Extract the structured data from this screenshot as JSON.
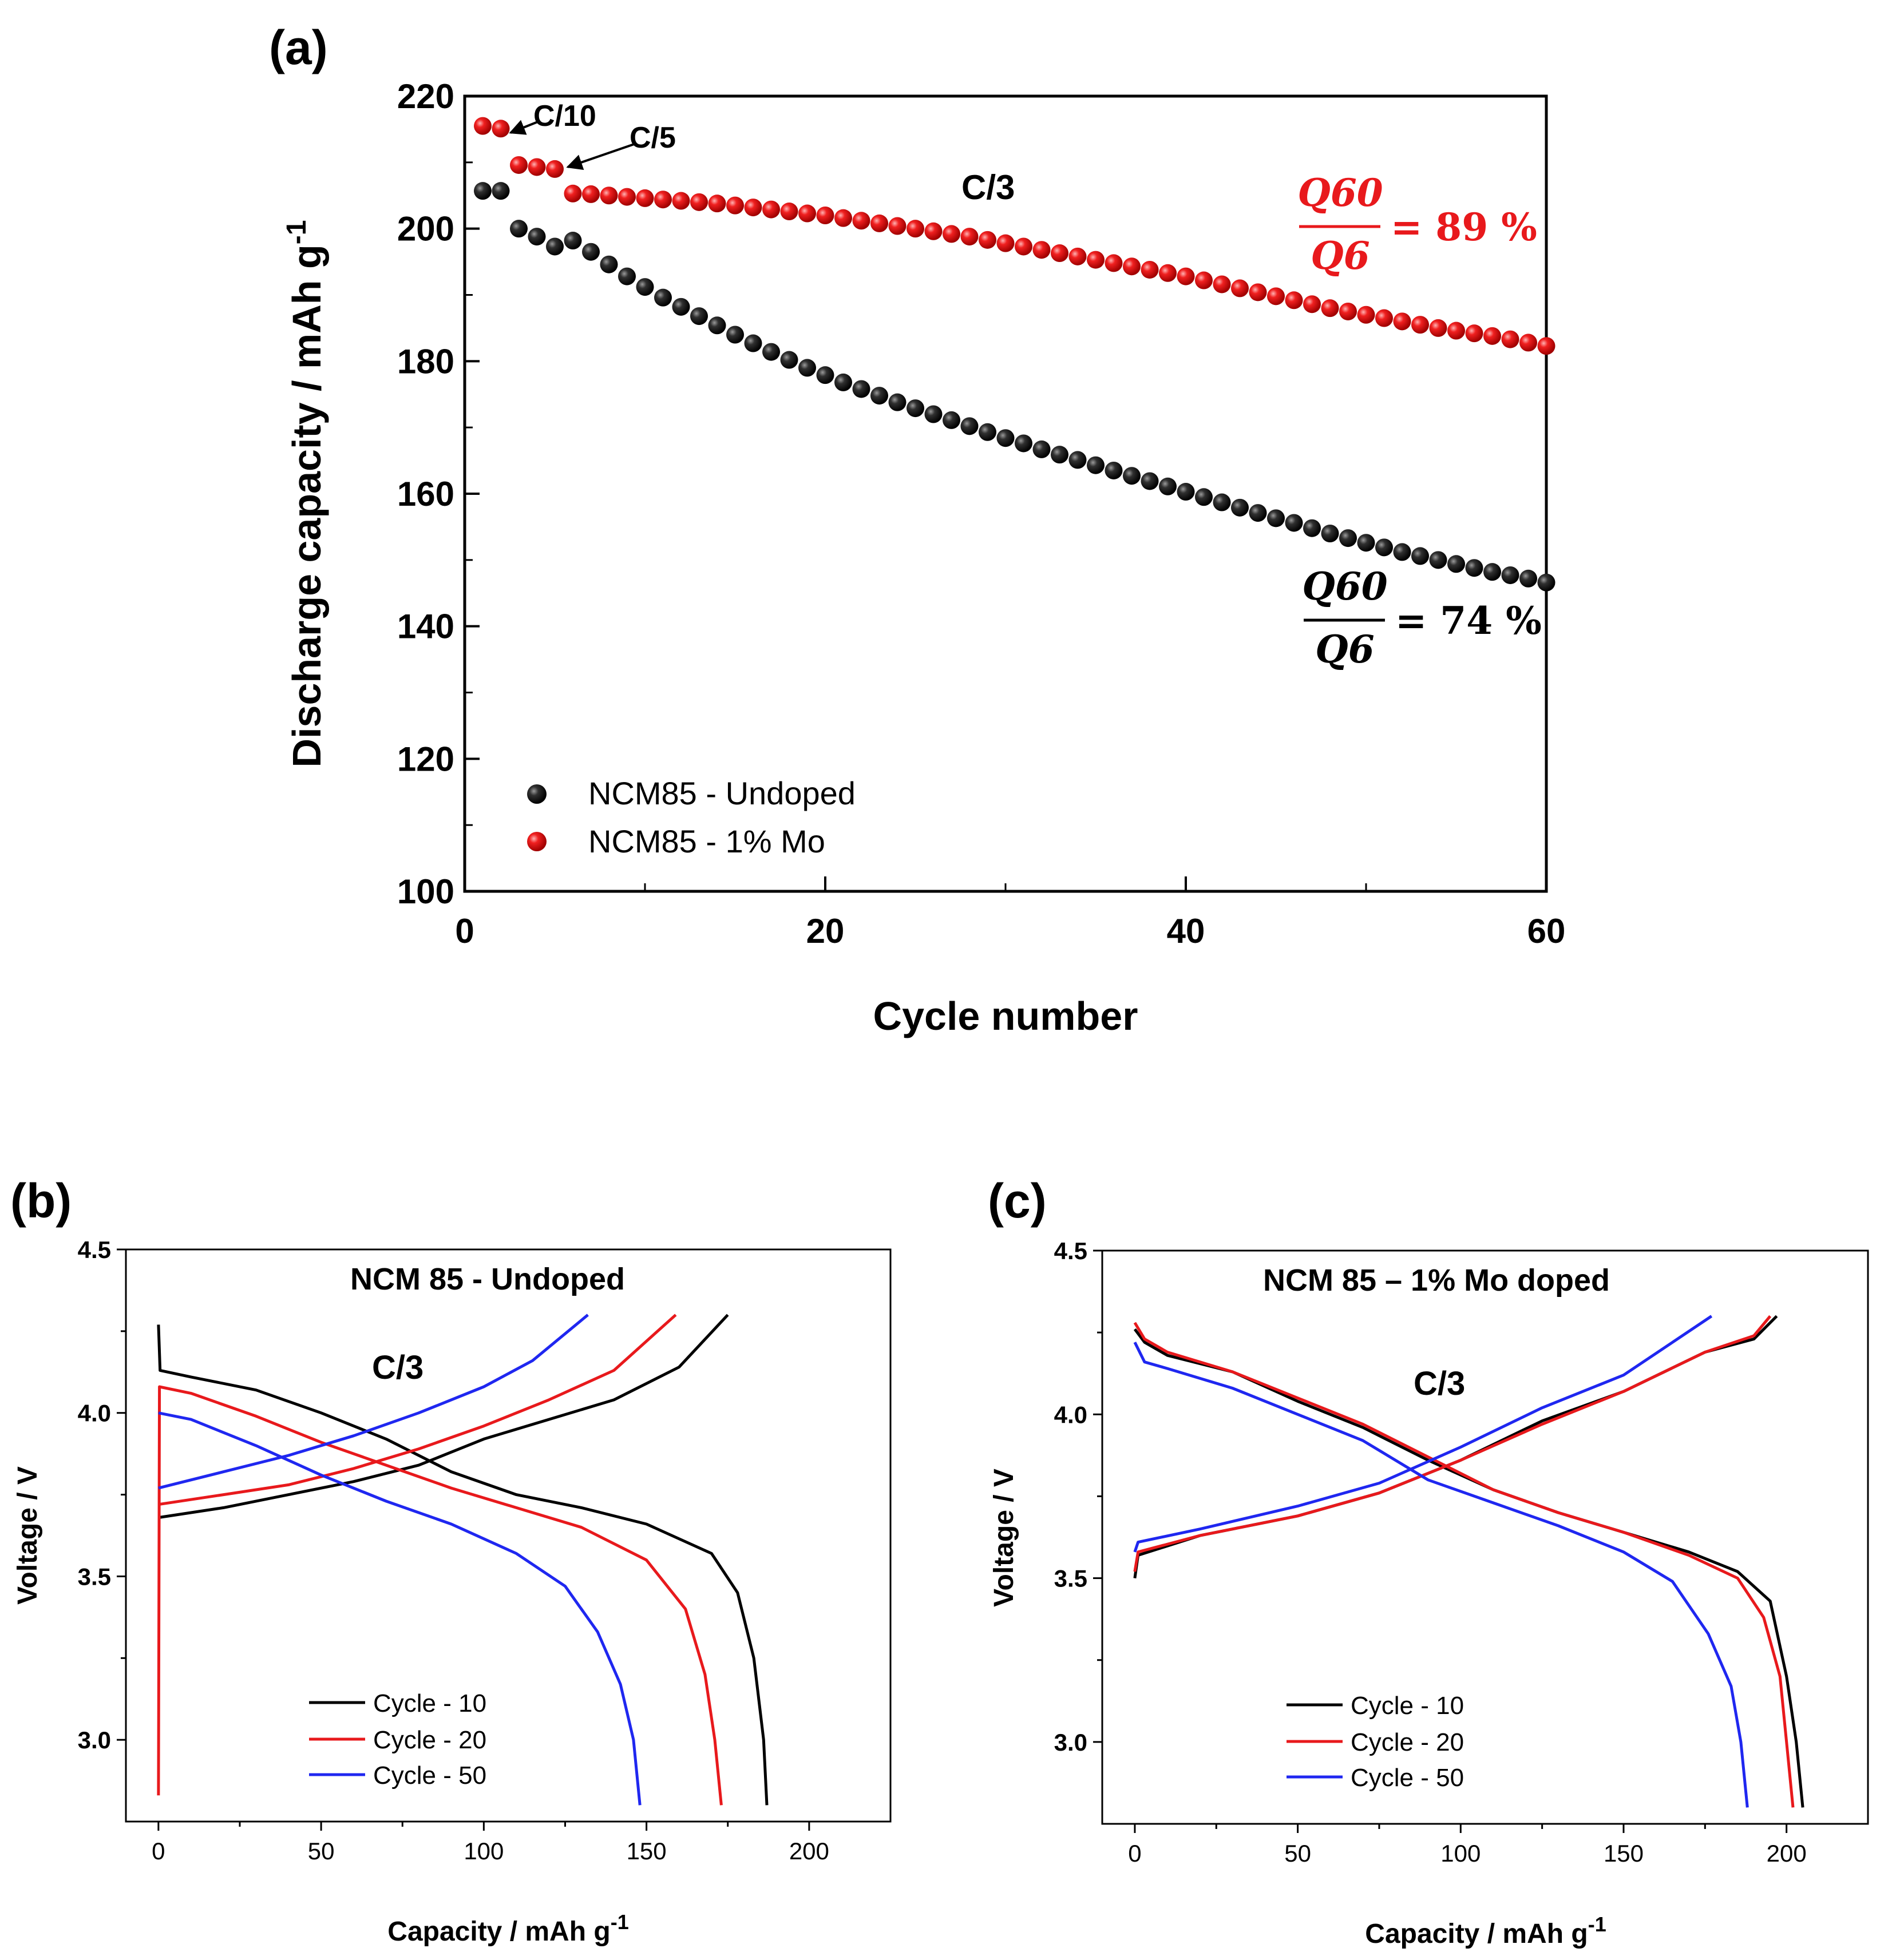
{
  "chart_data": [
    {
      "panel": "(a)",
      "type": "scatter",
      "xlabel": "Cycle number",
      "ylabel": "Discharge capacity / mAh g",
      "ylabel_sup": "-1",
      "xlim": [
        0,
        60
      ],
      "ylim": [
        100,
        220
      ],
      "xticks": [
        0,
        20,
        40,
        60
      ],
      "yticks": [
        100,
        120,
        140,
        160,
        180,
        200,
        220
      ],
      "legend_position": "bottom-left",
      "series": [
        {
          "name": "NCM85 - Undoped",
          "color": "#000000",
          "x": [
            1,
            2,
            3,
            4,
            5,
            6,
            7,
            8,
            9,
            10,
            11,
            12,
            13,
            14,
            15,
            16,
            17,
            18,
            19,
            20,
            21,
            22,
            23,
            24,
            25,
            26,
            27,
            28,
            29,
            30,
            31,
            32,
            33,
            34,
            35,
            36,
            37,
            38,
            39,
            40,
            41,
            42,
            43,
            44,
            45,
            46,
            47,
            48,
            49,
            50,
            51,
            52,
            53,
            54,
            55,
            56,
            57,
            58,
            59,
            60
          ],
          "values": [
            205.7,
            205.7,
            200.0,
            198.8,
            197.3,
            198.2,
            196.5,
            194.6,
            192.8,
            191.2,
            189.6,
            188.2,
            186.8,
            185.4,
            184.0,
            182.7,
            181.4,
            180.2,
            179.0,
            177.9,
            176.8,
            175.8,
            174.8,
            173.8,
            172.9,
            172.0,
            171.1,
            170.2,
            169.3,
            168.4,
            167.6,
            166.7,
            165.9,
            165.1,
            164.3,
            163.5,
            162.7,
            161.9,
            161.1,
            160.3,
            159.5,
            158.7,
            157.9,
            157.1,
            156.3,
            155.6,
            154.8,
            154.0,
            153.3,
            152.6,
            151.9,
            151.2,
            150.6,
            150.0,
            149.4,
            148.8,
            148.2,
            147.7,
            147.2,
            146.6
          ]
        },
        {
          "name": "NCM85 - 1% Mo",
          "color": "#e8191c",
          "x": [
            1,
            2,
            3,
            4,
            5,
            6,
            7,
            8,
            9,
            10,
            11,
            12,
            13,
            14,
            15,
            16,
            17,
            18,
            19,
            20,
            21,
            22,
            23,
            24,
            25,
            26,
            27,
            28,
            29,
            30,
            31,
            32,
            33,
            34,
            35,
            36,
            37,
            38,
            39,
            40,
            41,
            42,
            43,
            44,
            45,
            46,
            47,
            48,
            49,
            50,
            51,
            52,
            53,
            54,
            55,
            56,
            57,
            58,
            59,
            60
          ],
          "values": [
            215.5,
            215.1,
            209.6,
            209.3,
            209.0,
            205.3,
            205.2,
            205.0,
            204.8,
            204.6,
            204.4,
            204.2,
            204.0,
            203.8,
            203.5,
            203.2,
            202.9,
            202.6,
            202.3,
            202.0,
            201.6,
            201.2,
            200.8,
            200.4,
            200.0,
            199.6,
            199.2,
            198.8,
            198.3,
            197.8,
            197.3,
            196.8,
            196.3,
            195.8,
            195.3,
            194.8,
            194.3,
            193.8,
            193.3,
            192.8,
            192.2,
            191.6,
            191.0,
            190.4,
            189.8,
            189.2,
            188.6,
            188.0,
            187.5,
            187.0,
            186.5,
            186.0,
            185.5,
            185.0,
            184.6,
            184.2,
            183.8,
            183.3,
            182.8,
            182.3
          ]
        }
      ],
      "annotations": {
        "rate_c10": "C/10",
        "rate_c5": "C/5",
        "rate_c3": "C/3",
        "mo_formula": {
          "numerator": "Q60",
          "denominator": "Q6",
          "result": "= 89 %"
        },
        "undoped_formula": {
          "numerator": "Q60",
          "denominator": "Q6",
          "result": "= 74 %"
        }
      }
    },
    {
      "panel": "(b)",
      "type": "line",
      "title": "NCM 85 - Undoped",
      "rate_label": "C/3",
      "xlabel": "Capacity / mAh g",
      "xlabel_sup": "-1",
      "ylabel": "Voltage / V",
      "xlim": [
        -10,
        225
      ],
      "ylim": [
        2.75,
        4.5
      ],
      "xticks": [
        0,
        50,
        100,
        150,
        200
      ],
      "yticks": [
        "3.0",
        "3.5",
        "4.0",
        "4.5"
      ],
      "legend_position": "bottom-center",
      "series": [
        {
          "name": "Cycle - 10",
          "color": "#000000",
          "charge": [
            [
              0,
              3.68
            ],
            [
              20,
              3.71
            ],
            [
              40,
              3.75
            ],
            [
              60,
              3.79
            ],
            [
              80,
              3.84
            ],
            [
              100,
              3.92
            ],
            [
              120,
              3.98
            ],
            [
              140,
              4.04
            ],
            [
              160,
              4.14
            ],
            [
              175,
              4.3
            ]
          ],
          "discharge": [
            [
              0,
              4.27
            ],
            [
              0.5,
              4.13
            ],
            [
              10,
              4.11
            ],
            [
              30,
              4.07
            ],
            [
              50,
              4.0
            ],
            [
              70,
              3.92
            ],
            [
              90,
              3.82
            ],
            [
              110,
              3.75
            ],
            [
              130,
              3.71
            ],
            [
              150,
              3.66
            ],
            [
              170,
              3.57
            ],
            [
              178,
              3.45
            ],
            [
              183,
              3.25
            ],
            [
              186,
              3.0
            ],
            [
              187,
              2.8
            ]
          ]
        },
        {
          "name": "Cycle - 20",
          "color": "#e8191c",
          "charge": [
            [
              0,
              3.72
            ],
            [
              20,
              3.75
            ],
            [
              40,
              3.78
            ],
            [
              60,
              3.83
            ],
            [
              80,
              3.89
            ],
            [
              100,
              3.96
            ],
            [
              120,
              4.04
            ],
            [
              140,
              4.13
            ],
            [
              159,
              4.3
            ]
          ],
          "discharge": [
            [
              0,
              2.83
            ],
            [
              0.3,
              4.08
            ],
            [
              10,
              4.06
            ],
            [
              30,
              3.99
            ],
            [
              50,
              3.91
            ],
            [
              70,
              3.84
            ],
            [
              90,
              3.77
            ],
            [
              110,
              3.71
            ],
            [
              130,
              3.65
            ],
            [
              150,
              3.55
            ],
            [
              162,
              3.4
            ],
            [
              168,
              3.2
            ],
            [
              171,
              3.0
            ],
            [
              173,
              2.8
            ]
          ]
        },
        {
          "name": "Cycle - 50",
          "color": "#1f27f0",
          "charge": [
            [
              0,
              3.77
            ],
            [
              20,
              3.82
            ],
            [
              40,
              3.87
            ],
            [
              60,
              3.93
            ],
            [
              80,
              4.0
            ],
            [
              100,
              4.08
            ],
            [
              115,
              4.16
            ],
            [
              132,
              4.3
            ]
          ],
          "discharge": [
            [
              0,
              4.0
            ],
            [
              10,
              3.98
            ],
            [
              30,
              3.9
            ],
            [
              50,
              3.81
            ],
            [
              70,
              3.73
            ],
            [
              90,
              3.66
            ],
            [
              110,
              3.57
            ],
            [
              125,
              3.47
            ],
            [
              135,
              3.33
            ],
            [
              142,
              3.17
            ],
            [
              146,
              3.0
            ],
            [
              148,
              2.8
            ]
          ]
        }
      ]
    },
    {
      "panel": "(c)",
      "type": "line",
      "title": "NCM 85 – 1% Mo doped",
      "rate_label": "C/3",
      "xlabel": "Capacity / mAh g",
      "xlabel_sup": "-1",
      "ylabel": "Voltage / V",
      "xlim": [
        -10,
        225
      ],
      "ylim": [
        2.75,
        4.5
      ],
      "xticks": [
        0,
        50,
        100,
        150,
        200
      ],
      "yticks": [
        "3.0",
        "3.5",
        "4.0",
        "4.5"
      ],
      "legend_position": "bottom-center",
      "series": [
        {
          "name": "Cycle - 10",
          "color": "#000000",
          "charge": [
            [
              0,
              3.5
            ],
            [
              1,
              3.57
            ],
            [
              20,
              3.63
            ],
            [
              50,
              3.69
            ],
            [
              75,
              3.76
            ],
            [
              100,
              3.86
            ],
            [
              125,
              3.98
            ],
            [
              150,
              4.07
            ],
            [
              175,
              4.19
            ],
            [
              190,
              4.23
            ],
            [
              197,
              4.3
            ]
          ],
          "discharge": [
            [
              0,
              4.26
            ],
            [
              3,
              4.22
            ],
            [
              10,
              4.18
            ],
            [
              30,
              4.13
            ],
            [
              50,
              4.04
            ],
            [
              70,
              3.96
            ],
            [
              90,
              3.86
            ],
            [
              110,
              3.77
            ],
            [
              130,
              3.7
            ],
            [
              150,
              3.64
            ],
            [
              170,
              3.58
            ],
            [
              185,
              3.52
            ],
            [
              195,
              3.43
            ],
            [
              200,
              3.2
            ],
            [
              203,
              3.0
            ],
            [
              205,
              2.8
            ]
          ]
        },
        {
          "name": "Cycle - 20",
          "color": "#e8191c",
          "charge": [
            [
              0,
              3.52
            ],
            [
              1,
              3.58
            ],
            [
              20,
              3.63
            ],
            [
              50,
              3.69
            ],
            [
              75,
              3.76
            ],
            [
              100,
              3.86
            ],
            [
              125,
              3.97
            ],
            [
              150,
              4.07
            ],
            [
              175,
              4.19
            ],
            [
              190,
              4.24
            ],
            [
              195,
              4.3
            ]
          ],
          "discharge": [
            [
              0,
              4.28
            ],
            [
              3,
              4.23
            ],
            [
              10,
              4.19
            ],
            [
              30,
              4.13
            ],
            [
              50,
              4.05
            ],
            [
              70,
              3.97
            ],
            [
              90,
              3.87
            ],
            [
              110,
              3.77
            ],
            [
              130,
              3.7
            ],
            [
              150,
              3.64
            ],
            [
              170,
              3.57
            ],
            [
              185,
              3.5
            ],
            [
              193,
              3.38
            ],
            [
              198,
              3.2
            ],
            [
              200,
              3.0
            ],
            [
              202,
              2.8
            ]
          ]
        },
        {
          "name": "Cycle - 50",
          "color": "#1f27f0",
          "charge": [
            [
              0,
              3.58
            ],
            [
              1,
              3.61
            ],
            [
              20,
              3.65
            ],
            [
              50,
              3.72
            ],
            [
              75,
              3.79
            ],
            [
              100,
              3.9
            ],
            [
              125,
              4.02
            ],
            [
              150,
              4.12
            ],
            [
              177,
              4.3
            ]
          ],
          "discharge": [
            [
              0,
              4.22
            ],
            [
              3,
              4.16
            ],
            [
              10,
              4.14
            ],
            [
              30,
              4.08
            ],
            [
              50,
              4.0
            ],
            [
              70,
              3.92
            ],
            [
              90,
              3.8
            ],
            [
              110,
              3.73
            ],
            [
              130,
              3.66
            ],
            [
              150,
              3.58
            ],
            [
              165,
              3.49
            ],
            [
              176,
              3.33
            ],
            [
              183,
              3.17
            ],
            [
              186,
              3.0
            ],
            [
              188,
              2.8
            ]
          ]
        }
      ]
    }
  ]
}
